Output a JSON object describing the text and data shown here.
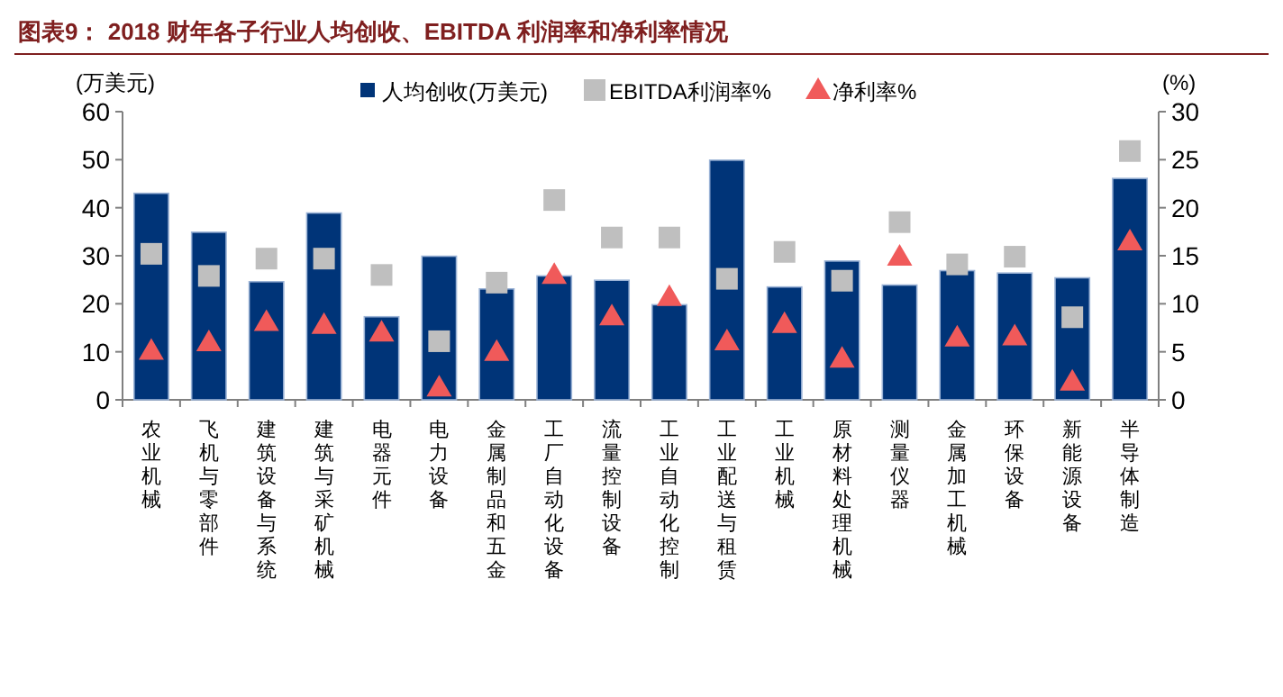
{
  "chart_data": {
    "type": "bar",
    "title": "图表9：  2018 财年各子行业人均创收、EBITDA 利润率和净利率情况",
    "ylabel": "(万美元)",
    "y2label": "(%)",
    "categories": [
      "农业机械",
      "飞机与零部件",
      "建筑设备与系统",
      "建筑与采矿机械",
      "电器元件",
      "电力设备",
      "金属制品和五金",
      "工厂自动化设备",
      "流量控制设备",
      "工业自动化控制",
      "工业配送与租赁",
      "工业机械",
      "原材料处理机械",
      "测量仪器",
      "金属加工机械",
      "环保设备",
      "新能源设备",
      "半导体制造"
    ],
    "series": [
      {
        "name": "人均创收(万美元)",
        "color": "#003478",
        "values": [
          43,
          34.9,
          24.6,
          38.9,
          17.3,
          29.9,
          23.1,
          25.8,
          24.9,
          19.8,
          49.9,
          23.5,
          28.9,
          23.9,
          26.9,
          26.4,
          25.4,
          46.1
        ]
      },
      {
        "name": "EBITDA利润率%",
        "type": "scatter",
        "axis": "y2",
        "marker": "square",
        "color": "#bfbfbf",
        "values": [
          15.2,
          12.9,
          14.7,
          14.7,
          13,
          6.1,
          12.2,
          20.8,
          16.9,
          16.9,
          12.6,
          15.4,
          12.4,
          18.5,
          14.1,
          14.9,
          8.6,
          25.9
        ]
      },
      {
        "name": "净利率%",
        "type": "scatter",
        "axis": "y2",
        "marker": "triangle",
        "color": "#f05a5a",
        "values": [
          5.1,
          6.0,
          8.1,
          7.8,
          7.0,
          1.3,
          5.0,
          13,
          8.7,
          10.7,
          6.1,
          7.9,
          4.3,
          14.9,
          6.5,
          6.6,
          1.9,
          16.5
        ]
      }
    ],
    "ylim": [
      0,
      60
    ],
    "yticks": [
      0,
      10,
      20,
      30,
      40,
      50,
      60
    ],
    "y2lim": [
      0,
      30
    ],
    "y2ticks": [
      0,
      5,
      10,
      15,
      20,
      25,
      30
    ],
    "legend": "top",
    "grid": false
  }
}
